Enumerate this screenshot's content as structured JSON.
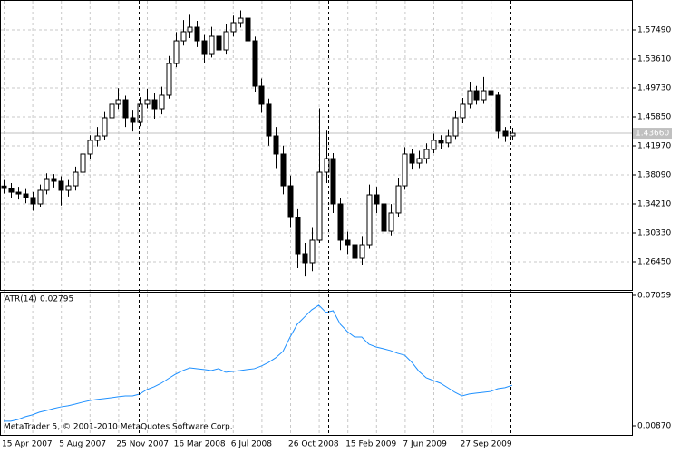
{
  "chart_data": [
    {
      "type": "candlestick",
      "categories": [
        "15 Apr 2007",
        null,
        null,
        null,
        null,
        null,
        null,
        null,
        "5 Aug 2007",
        null,
        null,
        null,
        null,
        null,
        null,
        null,
        "25 Nov 2007",
        null,
        null,
        null,
        null,
        null,
        null,
        null,
        "16 Mar 2008",
        null,
        null,
        null,
        null,
        null,
        null,
        null,
        "6 Jul 2008",
        null,
        null,
        null,
        null,
        null,
        null,
        null,
        "26 Oct 2008",
        null,
        null,
        null,
        null,
        null,
        null,
        null,
        "15 Feb 2009",
        null,
        null,
        null,
        null,
        null,
        null,
        null,
        "7 Jun 2009",
        null,
        null,
        null,
        null,
        null,
        null,
        null,
        "27 Sep 2009",
        null,
        null,
        null,
        null,
        null,
        null,
        null
      ],
      "open": [
        1.366,
        1.3627,
        1.3578,
        1.3554,
        1.3506,
        1.3421,
        1.3603,
        1.3748,
        1.3724,
        1.3603,
        1.3663,
        1.3845,
        1.4088,
        1.427,
        1.433,
        1.4573,
        1.4755,
        1.4815,
        1.4573,
        1.4512,
        1.4755,
        1.4815,
        1.4694,
        1.4876,
        1.53,
        1.5603,
        1.5725,
        1.5785,
        1.5603,
        1.5421,
        1.5664,
        1.5482,
        1.5725,
        1.5846,
        1.5906,
        1.5603,
        1.4997,
        1.4755,
        1.433,
        1.4088,
        1.3663,
        1.3239,
        1.2754,
        1.2633,
        1.2936,
        1.3845,
        1.4027,
        1.3421,
        1.2936,
        1.2875,
        1.2693,
        1.2875,
        1.3542,
        1.3421,
        1.3057,
        1.33,
        1.3663,
        1.4088,
        1.3966,
        1.4027,
        1.4148,
        1.427,
        1.4235,
        1.433,
        1.4573,
        1.4755,
        1.4936,
        1.4815,
        1.4936,
        1.4876,
        1.4391,
        1.433
      ],
      "high": [
        1.374,
        1.37,
        1.365,
        1.362,
        1.358,
        1.368,
        1.383,
        1.382,
        1.379,
        1.374,
        1.392,
        1.416,
        1.434,
        1.445,
        1.465,
        1.488,
        1.497,
        1.487,
        1.468,
        1.485,
        1.496,
        1.49,
        1.499,
        1.54,
        1.572,
        1.588,
        1.595,
        1.587,
        1.568,
        1.579,
        1.576,
        1.583,
        1.594,
        1.601,
        1.596,
        1.566,
        1.51,
        1.483,
        1.445,
        1.42,
        1.38,
        1.335,
        1.29,
        1.31,
        1.47,
        1.44,
        1.41,
        1.35,
        1.305,
        1.296,
        1.298,
        1.368,
        1.365,
        1.348,
        1.342,
        1.376,
        1.418,
        1.416,
        1.413,
        1.423,
        1.436,
        1.434,
        1.442,
        1.466,
        1.484,
        1.505,
        1.5,
        1.512,
        1.502,
        1.492,
        1.445,
        1.444
      ],
      "low": [
        1.356,
        1.35,
        1.348,
        1.343,
        1.333,
        1.338,
        1.355,
        1.364,
        1.34,
        1.352,
        1.36,
        1.38,
        1.402,
        1.419,
        1.428,
        1.45,
        1.469,
        1.445,
        1.439,
        1.446,
        1.47,
        1.456,
        1.462,
        1.483,
        1.525,
        1.554,
        1.564,
        1.552,
        1.53,
        1.538,
        1.538,
        1.542,
        1.566,
        1.578,
        1.554,
        1.492,
        1.464,
        1.42,
        1.39,
        1.355,
        1.31,
        1.256,
        1.245,
        1.252,
        1.29,
        1.37,
        1.33,
        1.28,
        1.275,
        1.253,
        1.26,
        1.282,
        1.33,
        1.292,
        1.3,
        1.325,
        1.361,
        1.388,
        1.39,
        1.396,
        1.41,
        1.415,
        1.418,
        1.429,
        1.45,
        1.47,
        1.475,
        1.476,
        1.47,
        1.43,
        1.425,
        1.428
      ],
      "close": [
        1.3627,
        1.3578,
        1.3554,
        1.3506,
        1.3421,
        1.3603,
        1.3748,
        1.3724,
        1.3603,
        1.3663,
        1.3845,
        1.4088,
        1.427,
        1.433,
        1.4573,
        1.4755,
        1.4815,
        1.4573,
        1.4512,
        1.4755,
        1.4815,
        1.4694,
        1.4876,
        1.53,
        1.5603,
        1.5725,
        1.5785,
        1.5603,
        1.5421,
        1.5664,
        1.5482,
        1.5725,
        1.5846,
        1.5906,
        1.5603,
        1.4997,
        1.4755,
        1.433,
        1.4088,
        1.3663,
        1.3239,
        1.2754,
        1.2633,
        1.2936,
        1.3845,
        1.4027,
        1.3421,
        1.2936,
        1.2875,
        1.2693,
        1.2875,
        1.3542,
        1.3421,
        1.3057,
        1.33,
        1.3663,
        1.4088,
        1.3966,
        1.4027,
        1.4148,
        1.427,
        1.4235,
        1.433,
        1.4573,
        1.4755,
        1.4936,
        1.4815,
        1.4936,
        1.4876,
        1.4391,
        1.433,
        1.4366
      ],
      "ylim": [
        1.2269,
        1.6149
      ],
      "yticks": [
        {
          "value": 1.2645,
          "label": "1.26450"
        },
        {
          "value": 1.3033,
          "label": "1.30330"
        },
        {
          "value": 1.3421,
          "label": "1.34210"
        },
        {
          "value": 1.3809,
          "label": "1.38090"
        },
        {
          "value": 1.4197,
          "label": "1.41970"
        },
        {
          "value": 1.4585,
          "label": "1.45850"
        },
        {
          "value": 1.4973,
          "label": "1.49730"
        },
        {
          "value": 1.5361,
          "label": "1.53610"
        },
        {
          "value": 1.5749,
          "label": "1.57490"
        }
      ],
      "current_price": {
        "value": 1.4366,
        "label": "1.43660"
      },
      "up_color": "#ffffff",
      "down_color": "#000000",
      "grid": true
    },
    {
      "type": "line",
      "title": "ATR(14)",
      "values": [
        0.0109,
        0.0109,
        0.0117,
        0.013,
        0.0139,
        0.0152,
        0.016,
        0.0169,
        0.0177,
        0.0182,
        0.019,
        0.0199,
        0.0207,
        0.0212,
        0.0216,
        0.022,
        0.0225,
        0.0229,
        0.0229,
        0.0238,
        0.0259,
        0.0272,
        0.0289,
        0.0311,
        0.0332,
        0.0349,
        0.0362,
        0.0358,
        0.0354,
        0.0349,
        0.0358,
        0.0341,
        0.0345,
        0.0349,
        0.0354,
        0.0358,
        0.0371,
        0.0388,
        0.041,
        0.044,
        0.0508,
        0.0569,
        0.0603,
        0.0637,
        0.0659,
        0.0625,
        0.0633,
        0.0569,
        0.0534,
        0.0508,
        0.0508,
        0.0474,
        0.0461,
        0.0453,
        0.0444,
        0.0431,
        0.0422,
        0.0388,
        0.0345,
        0.0315,
        0.0302,
        0.0289,
        0.0268,
        0.0246,
        0.0229,
        0.0238,
        0.0242,
        0.0246,
        0.025,
        0.0263,
        0.0268,
        0.02795
      ],
      "color": "#1e90ff",
      "ylim": [
        0.0044,
        0.07231
      ],
      "yticks": [
        {
          "value": 0.0087,
          "label": "0.00870"
        },
        0.07059
      ],
      "annotation": "MetaTrader 5, © 2001-2010 MetaQuotes Software Corp."
    }
  ]
}
